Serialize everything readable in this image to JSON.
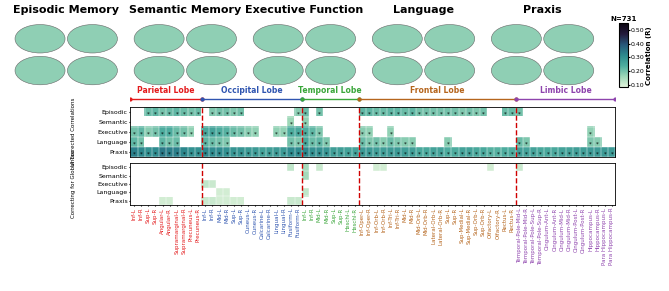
{
  "brain_maps": {
    "titles": [
      "Episodic Memory",
      "Semantic Memory",
      "Executive Function",
      "Language",
      "Praxis"
    ]
  },
  "chart_data": {
    "type": "heatmap",
    "rows": [
      "Episodic",
      "Semantic",
      "Executive",
      "Language",
      "Praxis"
    ],
    "column_groups": [
      {
        "name": "Parietal Lobe",
        "color": "#e31a1c",
        "regions": [
          "Inf-L",
          "Inf-R",
          "Sup-L",
          "Sup-R",
          "Angular-L",
          "Angular-R",
          "Supramarginal-L",
          "Supramarginal-R",
          "Precuneus-L",
          "Precuneus-R"
        ]
      },
      {
        "name": "Occipital Lobe",
        "color": "#2f55b0",
        "regions": [
          "Inf-L",
          "Inf-R",
          "Mid-L",
          "Mid-R",
          "Sup-L",
          "Sup-R",
          "Cuneus-L",
          "Cuneus-R",
          "Calcarine-L",
          "Calcarine-R",
          "Lingual-L",
          "Lingual-R",
          "Fusiform-L",
          "Fusiform-R"
        ]
      },
      {
        "name": "Temporal Lobe",
        "color": "#3aa63a",
        "regions": [
          "Inf-L",
          "Inf-R",
          "Mid-L",
          "Mid-R",
          "Sup-L",
          "Sup-R",
          "Heschl-L",
          "Heschl-R"
        ]
      },
      {
        "name": "Frontal Lobe",
        "color": "#b5651d",
        "regions": [
          "Inf-Oper-L",
          "Inf-Oper-R",
          "Inf-Orb-L",
          "Inf-Orb-R",
          "Inf-Tri-L",
          "Inf-Tri-R",
          "Mid-L",
          "Mid-R",
          "Mid-Orb-L",
          "Mid-Orb-R",
          "Lateral-Orb-L",
          "Lateral-Orb-R",
          "Sup-L",
          "Sup-R",
          "Sup-Medial-L",
          "Sup-Medial-R",
          "Sup-Orb-L",
          "Sup-Orb-R",
          "Olfactory-L",
          "Olfactory-R",
          "Rectus-L",
          "Rectus-R"
        ]
      },
      {
        "name": "Limbic Lobe",
        "color": "#8e44ad",
        "regions": [
          "Temporal-Pole-Mid-L",
          "Temporal-Pole-Mid-R",
          "Temporal-Pole-Sup-L",
          "Temporal-Pole-Sup-R",
          "Cingulum-Ant-L",
          "Cingulum-Ant-R",
          "Cingulum-Mid-L",
          "Cingulum-Mid-R",
          "Cingulum-Post-L",
          "Cingulum-Post-R",
          "Hippocampus-L",
          "Hippocampus-R",
          "Para Hippocampus-L",
          "Para Hippocampus-R"
        ]
      }
    ],
    "panels": [
      {
        "label": "Uncorrected Correlations",
        "cell_label": "*",
        "cells_by_group": [
          [
            [
              null,
              null,
              0.21,
              0.22,
              0.2,
              0.21,
              0.22,
              0.21,
              0.2,
              0.21
            ],
            [
              null,
              null,
              null,
              null,
              null,
              null,
              null,
              null,
              null,
              null
            ],
            [
              0.2,
              0.22,
              0.18,
              0.2,
              0.24,
              0.24,
              0.21,
              0.2,
              0.17,
              null
            ],
            [
              0.22,
              0.2,
              null,
              null,
              0.22,
              0.2,
              0.21,
              null,
              null,
              null
            ],
            [
              0.33,
              0.32,
              0.3,
              0.31,
              0.34,
              0.33,
              0.33,
              0.32,
              0.3,
              0.3
            ]
          ],
          [
            [
              null,
              0.19,
              0.2,
              0.2,
              0.19,
              0.2,
              null,
              null,
              null,
              null,
              null,
              null,
              null,
              0.18
            ],
            [
              null,
              null,
              null,
              null,
              null,
              null,
              null,
              null,
              null,
              null,
              null,
              null,
              0.16,
              null
            ],
            [
              0.25,
              0.26,
              0.24,
              0.23,
              0.21,
              0.2,
              0.18,
              0.17,
              null,
              null,
              0.17,
              0.17,
              0.24,
              0.25
            ],
            [
              0.22,
              0.21,
              0.2,
              0.19,
              null,
              null,
              null,
              null,
              null,
              null,
              null,
              null,
              0.2,
              0.19
            ],
            [
              0.32,
              0.31,
              0.31,
              0.3,
              0.29,
              0.29,
              0.28,
              0.28,
              0.26,
              0.27,
              0.28,
              0.28,
              0.31,
              0.31
            ]
          ],
          [
            [
              0.21,
              null,
              0.2,
              null,
              null,
              null,
              null,
              null
            ],
            [
              0.17,
              null,
              null,
              null,
              null,
              null,
              null,
              null
            ],
            [
              0.24,
              0.22,
              0.19,
              null,
              null,
              null,
              null,
              null
            ],
            [
              0.25,
              0.21,
              0.22,
              0.19,
              null,
              null,
              null,
              null
            ],
            [
              0.32,
              0.3,
              0.3,
              0.29,
              0.27,
              0.27,
              0.26,
              0.26
            ]
          ],
          [
            [
              0.22,
              0.22,
              0.21,
              0.21,
              0.22,
              0.22,
              0.21,
              0.22,
              0.2,
              0.2,
              0.2,
              0.2,
              0.2,
              0.2,
              0.19,
              0.2,
              0.19,
              0.2,
              null,
              null,
              0.21,
              0.21
            ],
            [
              null,
              null,
              null,
              null,
              null,
              null,
              null,
              null,
              null,
              null,
              null,
              null,
              null,
              null,
              null,
              null,
              null,
              null,
              null,
              null,
              null,
              null
            ],
            [
              0.18,
              0.17,
              null,
              null,
              0.17,
              null,
              null,
              null,
              null,
              null,
              null,
              null,
              null,
              null,
              null,
              null,
              null,
              null,
              null,
              null,
              null,
              null
            ],
            [
              0.21,
              0.19,
              0.2,
              0.18,
              0.21,
              0.19,
              0.18,
              0.18,
              null,
              null,
              null,
              null,
              0.18,
              null,
              null,
              null,
              null,
              null,
              null,
              null,
              null,
              null
            ],
            [
              0.28,
              0.28,
              0.27,
              0.27,
              0.28,
              0.28,
              0.27,
              0.27,
              0.25,
              0.25,
              0.26,
              0.26,
              0.24,
              0.24,
              0.26,
              0.26,
              0.25,
              0.25,
              0.23,
              0.23,
              0.24,
              0.24
            ]
          ],
          [
            [
              0.2,
              null,
              null,
              null,
              null,
              null,
              null,
              null,
              null,
              null,
              null,
              null,
              null,
              null
            ],
            [
              null,
              null,
              null,
              null,
              null,
              null,
              null,
              null,
              null,
              null,
              null,
              null,
              null,
              null
            ],
            [
              null,
              null,
              null,
              null,
              null,
              null,
              null,
              null,
              null,
              null,
              0.17,
              null,
              null,
              null
            ],
            [
              0.21,
              0.19,
              null,
              null,
              null,
              null,
              null,
              null,
              null,
              null,
              0.19,
              0.18,
              null,
              null
            ],
            [
              0.27,
              0.26,
              0.26,
              0.25,
              0.25,
              0.25,
              0.26,
              0.26,
              0.27,
              0.27,
              0.28,
              0.28,
              0.28,
              0.28
            ]
          ]
        ]
      },
      {
        "label": "Correcting for Global Tau",
        "cells_by_group": [
          [
            [
              null,
              null,
              null,
              null,
              null,
              null,
              null,
              null,
              null,
              null
            ],
            [
              null,
              null,
              null,
              null,
              null,
              null,
              null,
              null,
              null,
              null
            ],
            [
              null,
              null,
              null,
              null,
              null,
              null,
              null,
              null,
              null,
              null
            ],
            [
              null,
              null,
              null,
              null,
              null,
              null,
              null,
              null,
              null,
              null
            ],
            [
              null,
              null,
              null,
              null,
              0.1,
              0.1,
              null,
              null,
              null,
              null
            ]
          ],
          [
            [
              null,
              null,
              null,
              null,
              null,
              null,
              null,
              null,
              null,
              null,
              null,
              null,
              0.12,
              null
            ],
            [
              null,
              null,
              null,
              null,
              null,
              null,
              null,
              null,
              null,
              null,
              null,
              null,
              null,
              null
            ],
            [
              0.12,
              0.11,
              null,
              null,
              null,
              null,
              null,
              null,
              null,
              null,
              null,
              null,
              null,
              null
            ],
            [
              null,
              null,
              0.1,
              0.1,
              null,
              null,
              null,
              null,
              null,
              null,
              null,
              null,
              null,
              null
            ],
            [
              0.11,
              0.11,
              0.1,
              0.1,
              0.1,
              0.1,
              null,
              null,
              null,
              null,
              null,
              null,
              0.11,
              0.11
            ]
          ],
          [
            [
              0.15,
              null,
              0.11,
              null,
              null,
              null,
              null,
              null
            ],
            [
              0.15,
              null,
              null,
              null,
              null,
              null,
              null,
              null
            ],
            [
              null,
              null,
              null,
              null,
              null,
              null,
              null,
              null
            ],
            [
              0.12,
              null,
              null,
              null,
              null,
              null,
              null,
              null
            ],
            [
              null,
              null,
              null,
              null,
              null,
              null,
              null,
              null
            ]
          ],
          [
            [
              null,
              null,
              0.1,
              0.1,
              null,
              null,
              null,
              null,
              null,
              null,
              null,
              null,
              null,
              null,
              null,
              null,
              null,
              null,
              0.1,
              null,
              null,
              null
            ],
            [
              null,
              null,
              null,
              null,
              null,
              null,
              null,
              null,
              null,
              null,
              null,
              null,
              null,
              null,
              null,
              null,
              null,
              null,
              null,
              null,
              null,
              null
            ],
            [
              null,
              null,
              null,
              null,
              null,
              null,
              null,
              null,
              null,
              null,
              null,
              null,
              null,
              null,
              null,
              null,
              null,
              null,
              null,
              null,
              null,
              null
            ],
            [
              null,
              null,
              null,
              null,
              null,
              null,
              null,
              null,
              null,
              null,
              null,
              null,
              null,
              null,
              null,
              null,
              null,
              null,
              null,
              null,
              null,
              null
            ],
            [
              null,
              null,
              null,
              null,
              null,
              null,
              null,
              null,
              null,
              null,
              null,
              null,
              null,
              null,
              null,
              null,
              null,
              null,
              null,
              null,
              null,
              null
            ]
          ],
          [
            [
              0.11,
              null,
              null,
              null,
              null,
              null,
              null,
              null,
              null,
              null,
              null,
              null,
              null,
              null
            ],
            [
              null,
              null,
              null,
              null,
              null,
              null,
              null,
              null,
              null,
              null,
              null,
              null,
              null,
              null
            ],
            [
              null,
              null,
              null,
              null,
              null,
              null,
              null,
              null,
              null,
              null,
              null,
              null,
              null,
              null
            ],
            [
              null,
              null,
              null,
              null,
              null,
              null,
              null,
              null,
              null,
              null,
              null,
              null,
              null,
              null
            ],
            [
              null,
              null,
              null,
              null,
              null,
              null,
              null,
              null,
              null,
              null,
              null,
              null,
              null,
              null
            ]
          ]
        ]
      }
    ],
    "colorbar": {
      "title": "N=731",
      "label": "Correlation (R)",
      "range": [
        0.08,
        0.55
      ],
      "ticks": [
        {
          "value": 0.1,
          "label": "0.10"
        },
        {
          "value": 0.2,
          "label": "0.20"
        },
        {
          "value": 0.3,
          "label": "0.30"
        },
        {
          "value": 0.4,
          "label": "0.40"
        },
        {
          "value": 0.5,
          "label": "0.50"
        }
      ]
    }
  }
}
